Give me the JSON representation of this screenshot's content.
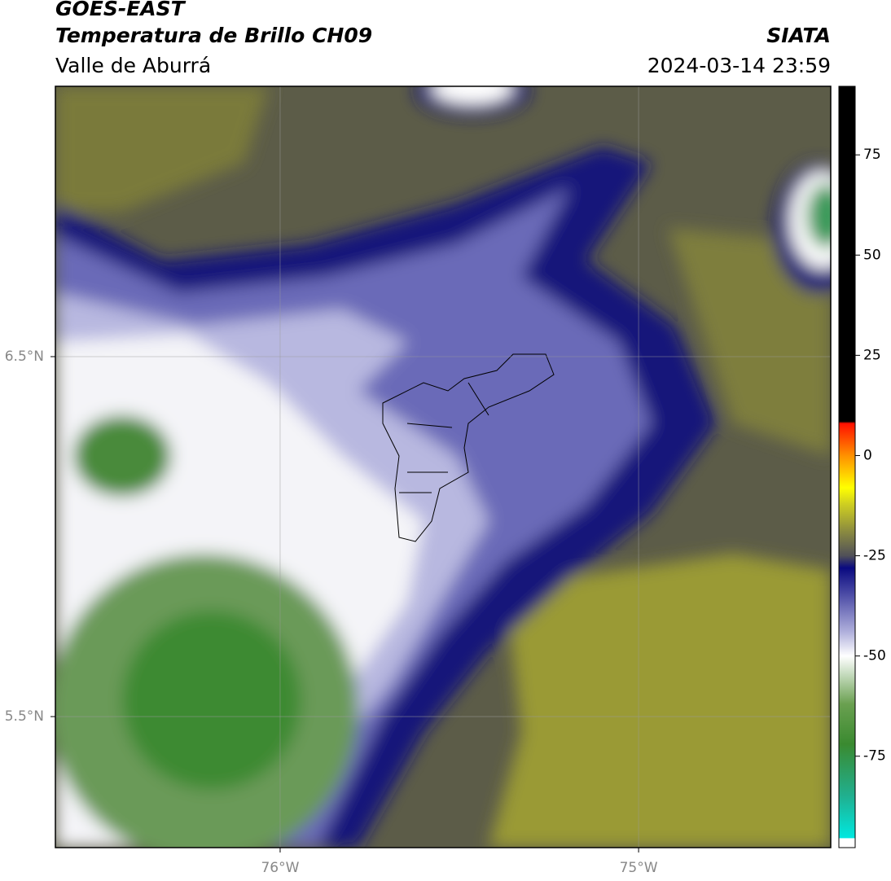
{
  "header": {
    "title": "GOES-EAST",
    "subtitle": "Temperatura de Brillo CH09",
    "region": "Valle de Aburrá",
    "source": "SIATA",
    "datetime": "2024-03-14 23:59"
  },
  "map": {
    "xlim": [
      -76.627,
      -74.464
    ],
    "ylim": [
      5.136,
      7.251
    ],
    "xticks": [
      {
        "value": -76,
        "label": "76°W"
      },
      {
        "value": -75,
        "label": "75°W"
      }
    ],
    "yticks": [
      {
        "value": 6.5,
        "label": "6.5°N"
      },
      {
        "value": 5.5,
        "label": "5.5°N"
      }
    ],
    "grid": true
  },
  "colorbar": {
    "lim": [
      -97.8,
      92.1
    ],
    "ticks": [
      75,
      50,
      25,
      0,
      -25,
      -50,
      -75
    ],
    "colormap": [
      {
        "value": -97.8,
        "color": "#ffffff"
      },
      {
        "value": -95.5,
        "color": "#ffffff"
      },
      {
        "value": -95.4,
        "color": "#00e8e0"
      },
      {
        "value": -85,
        "color": "#20b090"
      },
      {
        "value": -72,
        "color": "#3a8a30"
      },
      {
        "value": -62,
        "color": "#6aa050"
      },
      {
        "value": -55,
        "color": "#c0d8b8"
      },
      {
        "value": -50,
        "color": "#ffffff"
      },
      {
        "value": -44,
        "color": "#b0b0dc"
      },
      {
        "value": -35,
        "color": "#5050a8"
      },
      {
        "value": -28,
        "color": "#0a0a80"
      },
      {
        "value": -25,
        "color": "#505058"
      },
      {
        "value": -19,
        "color": "#8a8a40"
      },
      {
        "value": -12,
        "color": "#d0d020"
      },
      {
        "value": -8,
        "color": "#ffff00"
      },
      {
        "value": 0,
        "color": "#ff9000"
      },
      {
        "value": 8,
        "color": "#ff1000"
      },
      {
        "value": 8.5,
        "color": "#000000"
      },
      {
        "value": 92.1,
        "color": "#000000"
      }
    ]
  }
}
